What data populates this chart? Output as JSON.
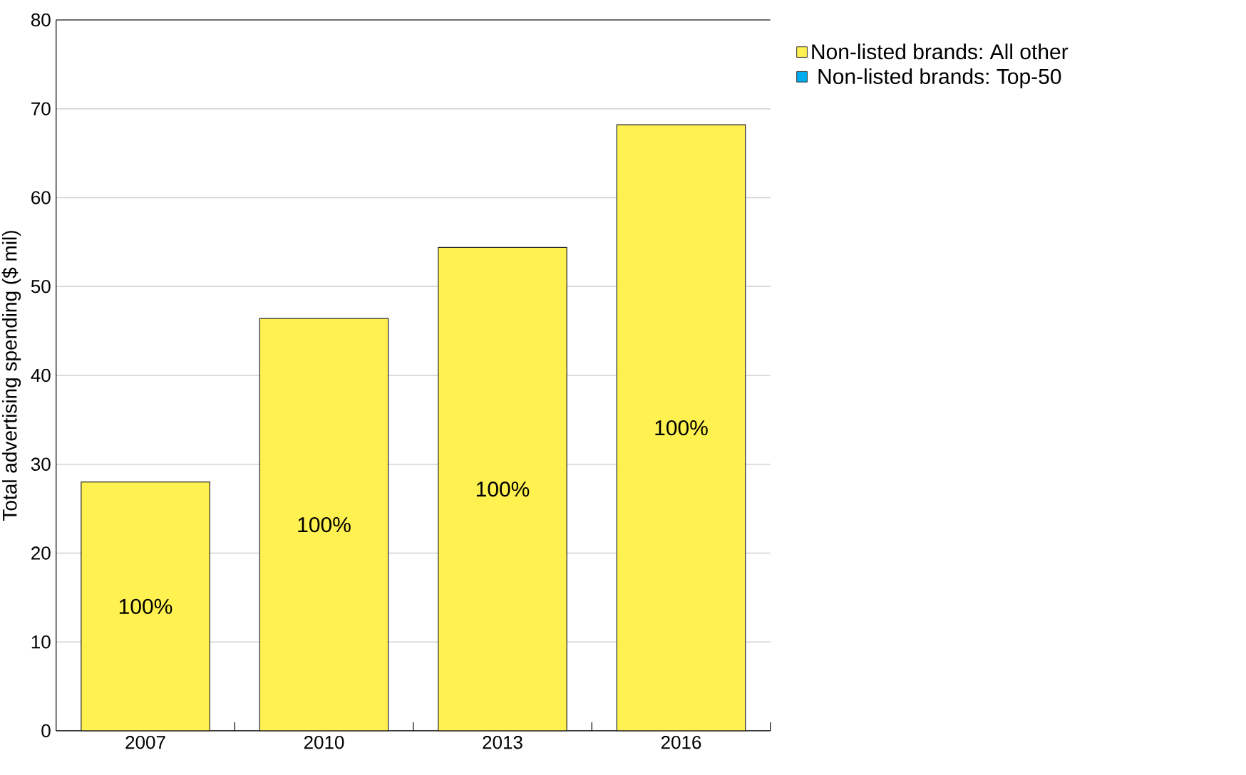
{
  "chart_data": {
    "type": "bar",
    "stacked": true,
    "ylabel": "Total advertising spending ($ mil)",
    "categories": [
      "2007",
      "2010",
      "2013",
      "2016"
    ],
    "series": [
      {
        "name": "Non-listed brands: All other",
        "color": "#fff150",
        "values": [
          28,
          46.4,
          54.4,
          68.2
        ]
      },
      {
        "name": "Non-listed brands: Top-50",
        "color": "#00aeef",
        "values": [
          0,
          0,
          0,
          0
        ]
      }
    ],
    "annotations": [
      "100%",
      "100%",
      "100%",
      "100%"
    ],
    "ylim": [
      0,
      80
    ],
    "yticks": [
      0,
      10,
      20,
      30,
      40,
      50,
      60,
      70,
      80
    ],
    "grid": "y",
    "legend": "top right"
  }
}
